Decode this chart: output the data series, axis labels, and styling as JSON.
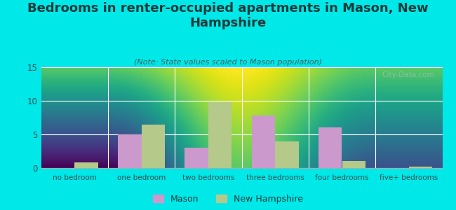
{
  "categories": [
    "no bedroom",
    "one bedroom",
    "two bedrooms",
    "three bedrooms",
    "four bedrooms",
    "five+ bedrooms"
  ],
  "mason_values": [
    0,
    5,
    3,
    7.8,
    6,
    0
  ],
  "nh_values": [
    0.8,
    6.5,
    9.8,
    4.0,
    1.0,
    0.2
  ],
  "mason_color": "#cc99cc",
  "nh_color": "#b5c98a",
  "title": "Bedrooms in renter-occupied apartments in Mason, New\nHampshire",
  "subtitle": "(Note: State values scaled to Mason population)",
  "legend_mason": "Mason",
  "legend_nh": "New Hampshire",
  "ylim": [
    0,
    15
  ],
  "yticks": [
    0,
    5,
    10,
    15
  ],
  "background_color": "#00e8e8",
  "title_color": "#1a3a3a",
  "subtitle_color": "#3a6060",
  "title_fontsize": 13,
  "subtitle_fontsize": 8,
  "watermark": "City-Data.com",
  "bar_width": 0.35
}
